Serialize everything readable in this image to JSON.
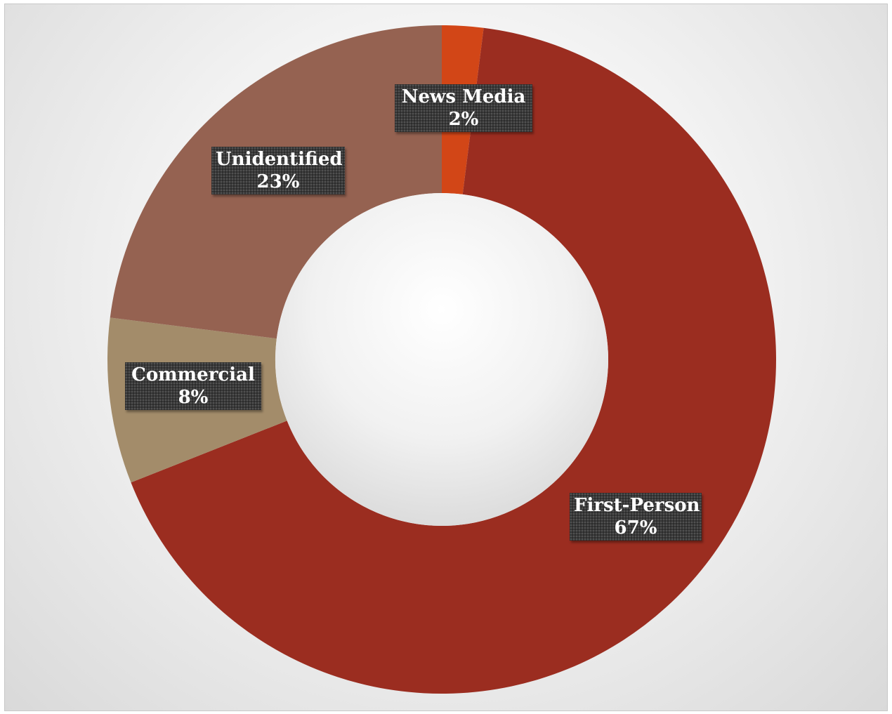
{
  "chart_data": {
    "type": "pie",
    "variant": "doughnut",
    "title": "",
    "categories": [
      "News Media",
      "First-Person",
      "Commercial",
      "Unidentified"
    ],
    "values": [
      2,
      67,
      8,
      23
    ],
    "value_labels": [
      "2%",
      "67%",
      "8%",
      "23%"
    ],
    "colors": [
      "#D24617",
      "#9B2D20",
      "#A38C6A",
      "#956251"
    ],
    "legend": "none",
    "data_labels": "category-and-percent",
    "start_angle_deg": 0,
    "direction": "clockwise"
  }
}
